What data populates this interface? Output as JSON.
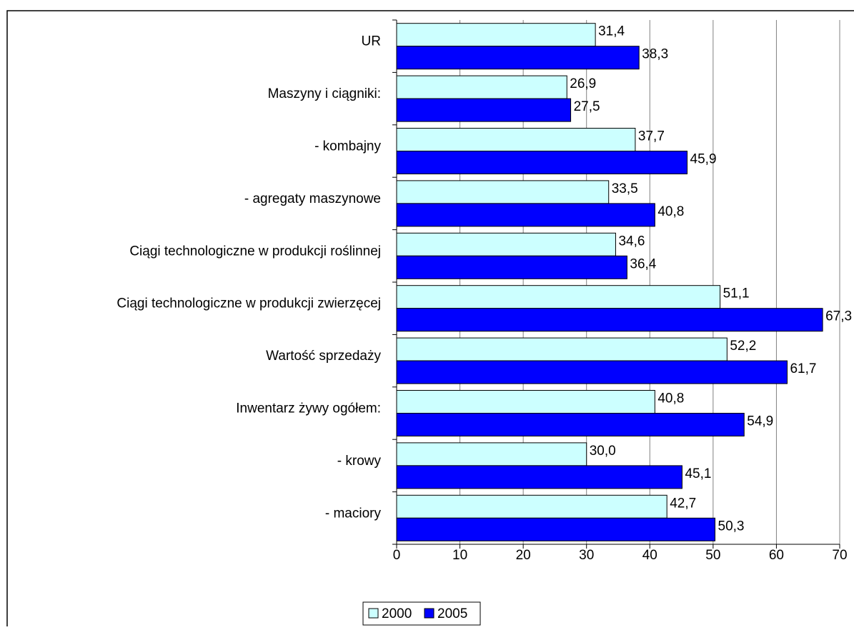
{
  "chart_data": {
    "type": "bar",
    "orientation": "horizontal",
    "categories": [
      "UR",
      "Maszyny i ciągniki:",
      "- kombajny",
      "- agregaty maszynowe",
      "Ciągi technologiczne w produkcji roślinnej",
      "Ciągi technologiczne w produkcji zwierzęcej",
      "Wartość sprzedaży",
      "Inwentarz żywy ogółem:",
      "- krowy",
      "- maciory"
    ],
    "series": [
      {
        "name": "2000",
        "color": "#ccffff",
        "values": [
          31.4,
          26.9,
          37.7,
          33.5,
          34.6,
          51.1,
          52.2,
          40.8,
          30.0,
          42.7
        ],
        "value_labels": [
          "31,4",
          "26,9",
          "37,7",
          "33,5",
          "34,6",
          "51,1",
          "52,2",
          "40,8",
          "30,0",
          "42,7"
        ]
      },
      {
        "name": "2005",
        "color": "#0000ff",
        "values": [
          38.3,
          27.5,
          45.9,
          40.8,
          36.4,
          67.3,
          61.7,
          54.9,
          45.1,
          50.3
        ],
        "value_labels": [
          "38,3",
          "27,5",
          "45,9",
          "40,8",
          "36,4",
          "67,3",
          "61,7",
          "54,9",
          "45,1",
          "50,3"
        ]
      }
    ],
    "xlim": [
      0,
      70
    ],
    "xticks": [
      0,
      10,
      20,
      30,
      40,
      50,
      60,
      70
    ],
    "grid": true,
    "legend": "bottom"
  }
}
